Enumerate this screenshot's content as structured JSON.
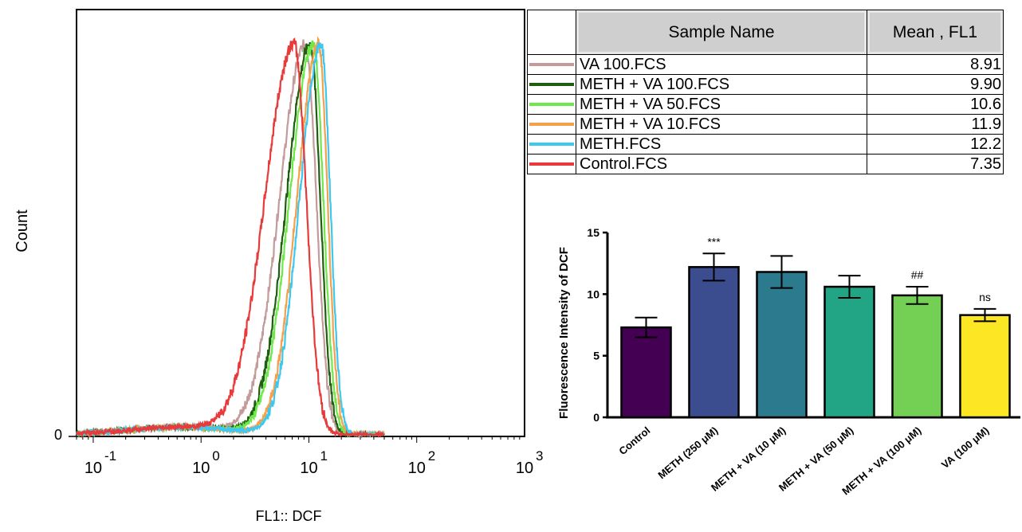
{
  "histogram": {
    "ylabel": "Count",
    "xlabel": "FL1:: DCF",
    "y_zero_label": "0",
    "x_ticks": [
      {
        "base": "10",
        "exp": "-1"
      },
      {
        "base": "10",
        "exp": "0"
      },
      {
        "base": "10",
        "exp": "1"
      },
      {
        "base": "10",
        "exp": "2"
      },
      {
        "base": "10",
        "exp": "3"
      }
    ]
  },
  "legend_table": {
    "header_name": "Sample Name",
    "header_mean": "Mean , FL1",
    "rows": [
      {
        "name": "VA 100.FCS",
        "mean": "8.91",
        "color": "#c49a9a"
      },
      {
        "name": "METH + VA 100.FCS",
        "mean": "9.90",
        "color": "#1f5e0e"
      },
      {
        "name": "METH + VA 50.FCS",
        "mean": "10.6",
        "color": "#6ee84a"
      },
      {
        "name": "METH + VA 10.FCS",
        "mean": "11.9",
        "color": "#f5a04a"
      },
      {
        "name": "METH.FCS",
        "mean": "12.2",
        "color": "#3cc8f0"
      },
      {
        "name": "Control.FCS",
        "mean": "7.35",
        "color": "#e83a3a"
      }
    ]
  },
  "chart_data": [
    {
      "type": "line",
      "title": "",
      "xlabel": "FL1:: DCF",
      "ylabel": "Count",
      "x_scale": "log",
      "xlim": [
        0.07,
        1000
      ],
      "x_ticks": [
        "10^-1",
        "10^0",
        "10^1",
        "10^2",
        "10^3"
      ],
      "series": [
        {
          "name": "VA 100.FCS",
          "color": "#c49a9a",
          "peak_x": 9.3,
          "width": 0.24
        },
        {
          "name": "METH + VA 100.FCS",
          "color": "#1f5e0e",
          "peak_x": 10.3,
          "width": 0.22
        },
        {
          "name": "METH + VA 50.FCS",
          "color": "#6ee84a",
          "peak_x": 11.0,
          "width": 0.22
        },
        {
          "name": "METH + VA 10.FCS",
          "color": "#f5a04a",
          "peak_x": 12.3,
          "width": 0.2
        },
        {
          "name": "METH.FCS",
          "color": "#3cc8f0",
          "peak_x": 13.0,
          "width": 0.2
        },
        {
          "name": "Control.FCS",
          "color": "#e83a3a",
          "peak_x": 7.3,
          "width": 0.27
        }
      ]
    },
    {
      "type": "bar",
      "title": "",
      "xlabel": "",
      "ylabel": "Fluorescence Intensity of DCF",
      "ylim": [
        0,
        15
      ],
      "yticks": [
        "0",
        "5",
        "10",
        "15"
      ],
      "categories": [
        "Control",
        "METH (250 μM)",
        "METH + VA (10 μM)",
        "METH + VA (50 μM)",
        "METH + VA (100 μM)",
        "VA (100 μM)"
      ],
      "values": [
        7.3,
        12.2,
        11.8,
        10.6,
        9.9,
        8.3
      ],
      "errors": [
        0.8,
        1.1,
        1.3,
        0.9,
        0.7,
        0.5
      ],
      "annotations": [
        "",
        "***",
        "",
        "",
        "##",
        "ns"
      ],
      "colors": [
        "#440154",
        "#3b4d8e",
        "#2c7a8d",
        "#21a585",
        "#74d055",
        "#fde725"
      ]
    }
  ]
}
